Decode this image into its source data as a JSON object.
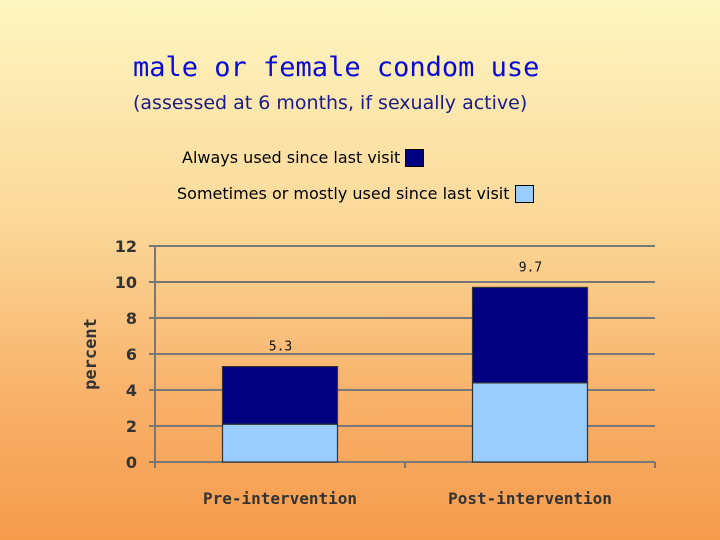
{
  "chart_data": {
    "type": "bar",
    "stacked": true,
    "title": "male or female condom use",
    "subtitle": "(assessed at 6 months, if sexually active)",
    "ylabel": "percent",
    "xlabel": "",
    "ylim": [
      0,
      12
    ],
    "yticks": [
      "0",
      "2",
      "4",
      "6",
      "8",
      "10",
      "12"
    ],
    "categories": [
      "Pre-intervention",
      "Post-intervention"
    ],
    "series": [
      {
        "name": "Sometimes or mostly used since last visit",
        "color": "#99ccff",
        "values": [
          2.1,
          4.4
        ]
      },
      {
        "name": "Always used since last visit",
        "color": "#000080",
        "values": [
          3.2,
          5.3
        ]
      }
    ],
    "totals": [
      "5.3",
      "9.7"
    ],
    "grid": true,
    "legend_position": "top"
  },
  "legend": {
    "always_label": "Always used since last visit",
    "sometimes_label": "Sometimes or mostly used since last visit"
  }
}
